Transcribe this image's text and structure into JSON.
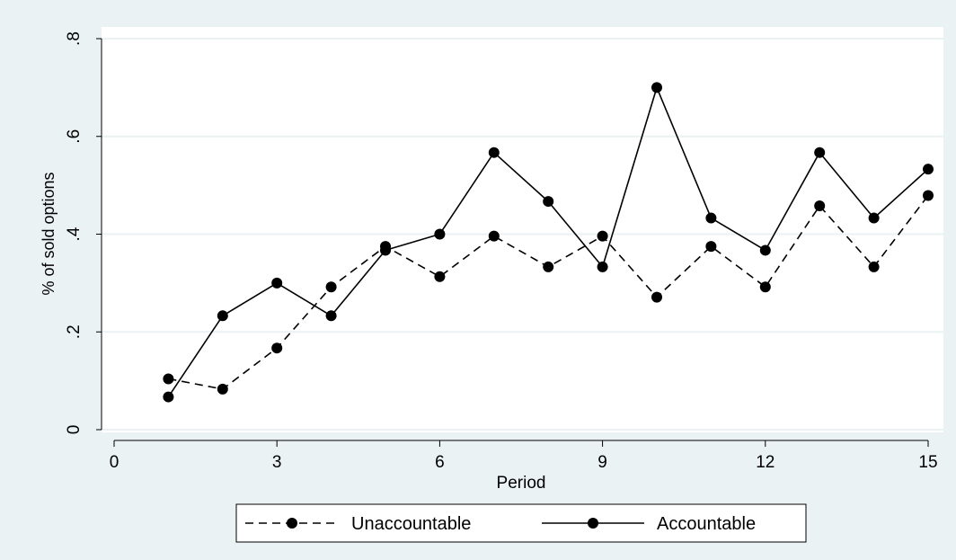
{
  "chart_data": {
    "type": "line",
    "title": "",
    "xlabel": "Period",
    "ylabel": "% of sold options",
    "xlim": [
      0,
      15
    ],
    "ylim": [
      0,
      0.8
    ],
    "x_ticks": [
      0,
      3,
      6,
      9,
      12,
      15
    ],
    "x_tick_labels": [
      "0",
      "3",
      "6",
      "9",
      "12",
      "15"
    ],
    "y_ticks": [
      0,
      0.2,
      0.4,
      0.6,
      0.8
    ],
    "y_tick_labels": [
      "0",
      ".2",
      ".4",
      ".6",
      ".8"
    ],
    "grid": "horizontal",
    "legend_position": "bottom",
    "x": [
      1,
      2,
      3,
      4,
      5,
      6,
      7,
      8,
      9,
      10,
      11,
      12,
      13,
      14,
      15
    ],
    "series": [
      {
        "name": "Unaccountable",
        "line_style": "dashed",
        "color": "#000000",
        "values": [
          0.104,
          0.083,
          0.167,
          0.292,
          0.375,
          0.313,
          0.396,
          0.333,
          0.396,
          0.271,
          0.375,
          0.292,
          0.458,
          0.333,
          0.479
        ]
      },
      {
        "name": "Accountable",
        "line_style": "solid",
        "color": "#000000",
        "values": [
          0.067,
          0.233,
          0.3,
          0.233,
          0.367,
          0.4,
          0.567,
          0.467,
          0.333,
          0.7,
          0.433,
          0.367,
          0.567,
          0.433,
          0.533
        ]
      }
    ],
    "colors": {
      "outer_background": "#eaf2f3",
      "plot_background": "#ffffff",
      "grid": "#eaf2f3",
      "ink": "#000000"
    }
  }
}
